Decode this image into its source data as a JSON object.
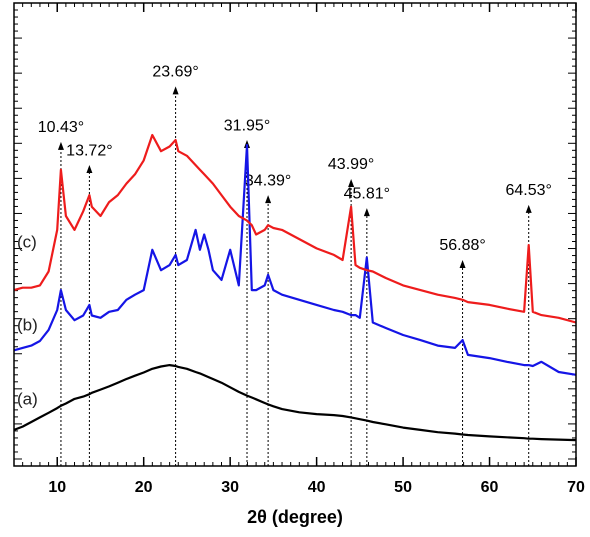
{
  "chart_data": {
    "type": "line",
    "x_label": "2θ (degree)",
    "x": [
      5,
      6,
      7,
      8,
      9,
      10,
      10.43,
      11,
      12,
      13,
      13.72,
      14,
      15,
      16,
      17,
      18,
      19,
      20,
      21,
      22,
      23,
      23.69,
      24,
      25,
      26,
      26.5,
      27,
      27.5,
      28,
      29,
      30,
      31,
      31.95,
      32.5,
      33,
      34,
      34.39,
      35,
      36,
      38,
      40,
      42,
      43,
      43.99,
      44.5,
      45,
      45.81,
      46.5,
      48,
      50,
      52,
      54,
      56,
      56.88,
      57.5,
      60,
      62,
      64,
      64.53,
      65,
      66,
      68,
      70
    ],
    "series": [
      {
        "name": "(a)",
        "color": "#000000",
        "values": [
          7.8,
          8.5,
          9.5,
          10.5,
          11.5,
          12.5,
          13,
          13.5,
          14.5,
          15,
          15.5,
          15.8,
          16.5,
          17.2,
          18,
          18.8,
          19.5,
          20.2,
          21,
          21.5,
          21.8,
          21.6,
          21.4,
          21,
          20.3,
          20,
          19.6,
          19.2,
          18.8,
          18,
          17,
          16,
          15.2,
          14.8,
          14.4,
          13.6,
          13.3,
          12.9,
          12.3,
          11.6,
          11.2,
          11,
          10.8,
          10.5,
          10.3,
          10.1,
          9.8,
          9.5,
          9,
          8.3,
          7.8,
          7.3,
          7,
          6.8,
          6.7,
          6.4,
          6.2,
          6,
          5.9,
          5.9,
          5.8,
          5.7,
          5.6
        ]
      },
      {
        "name": "(b)",
        "color": "#1515e6",
        "values": [
          25,
          25.5,
          26,
          27,
          29.4,
          33.7,
          38,
          33.7,
          31.5,
          32.5,
          34.8,
          32.5,
          32,
          33.3,
          33.7,
          35.9,
          37,
          38,
          46.7,
          42.3,
          43.4,
          45.6,
          43.4,
          44.5,
          51,
          46.7,
          50,
          46.7,
          42.3,
          40.2,
          46.7,
          39,
          69.3,
          38,
          38,
          39,
          41.3,
          38,
          37,
          35.9,
          34.8,
          33.7,
          33.3,
          32.6,
          32.6,
          32,
          45,
          31,
          29.8,
          28.3,
          27.2,
          26,
          25.5,
          27.2,
          24,
          23.3,
          22.5,
          21.8,
          21.8,
          21.6,
          22.5,
          20.3,
          19.7
        ]
      },
      {
        "name": "(c)",
        "color": "#ee1c1c",
        "values": [
          38,
          38.5,
          38.5,
          39,
          42,
          51,
          64,
          54,
          51,
          55,
          58.5,
          56,
          54,
          57,
          58.5,
          61,
          63,
          66,
          71.5,
          68,
          69,
          70.4,
          68,
          67,
          65,
          64,
          63,
          62,
          61,
          58.5,
          56,
          54,
          53,
          52,
          50,
          51,
          52,
          51.4,
          51,
          49,
          47,
          45.6,
          44.5,
          56,
          43.4,
          42.8,
          42.3,
          42,
          40.6,
          39,
          38,
          37,
          36.3,
          35.9,
          35.4,
          34.8,
          34,
          33.3,
          47.7,
          33.3,
          32.6,
          32,
          31
        ]
      }
    ],
    "annotations": [
      {
        "x": 10.43,
        "y": 70,
        "label": "10.43°"
      },
      {
        "x": 13.72,
        "y": 65,
        "label": "13.72°"
      },
      {
        "x": 23.69,
        "y": 82,
        "label": "23.69°"
      },
      {
        "x": 31.95,
        "y": 70.4,
        "label": "31.95°"
      },
      {
        "x": 34.39,
        "y": 58.5,
        "label": "34.39°"
      },
      {
        "x": 43.99,
        "y": 62,
        "label": "43.99°"
      },
      {
        "x": 45.81,
        "y": 55.7,
        "label": "45.81°"
      },
      {
        "x": 56.88,
        "y": 44.5,
        "label": "56.88°"
      },
      {
        "x": 64.53,
        "y": 56.4,
        "label": "64.53°"
      }
    ],
    "xlim": [
      5,
      70
    ],
    "xticks": [
      10,
      20,
      30,
      40,
      50,
      60,
      70
    ],
    "ylim": [
      0,
      100
    ]
  }
}
